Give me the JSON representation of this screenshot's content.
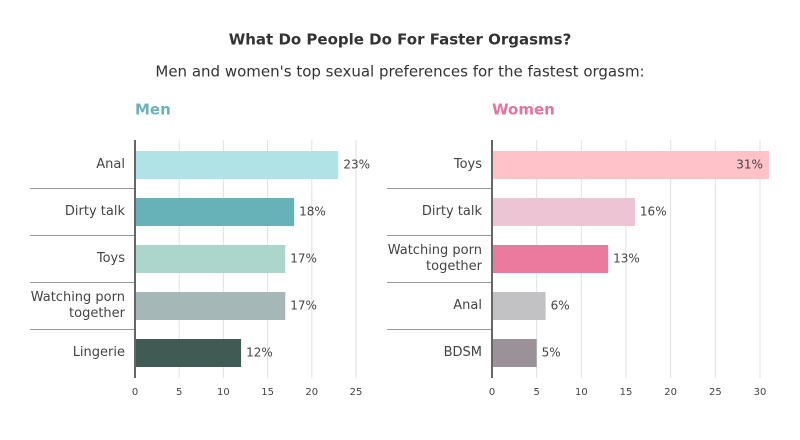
{
  "title": "What Do People Do For Faster Orgasms?",
  "subtitle": "Men and women's top sexual preferences for the fastest orgasm:",
  "chart_data": [
    {
      "type": "bar",
      "orientation": "horizontal",
      "title": "Men",
      "title_color": "#6bb3b9",
      "categories": [
        "Anal",
        "Dirty talk",
        "Toys",
        "Watching porn together",
        "Lingerie"
      ],
      "values": [
        23,
        18,
        17,
        17,
        12
      ],
      "value_labels": [
        "23%",
        "18%",
        "17%",
        "17%",
        "12%"
      ],
      "colors": [
        "#b0e3e6",
        "#67b1b8",
        "#acd6cc",
        "#a5b7b7",
        "#3f5b54"
      ],
      "xlim": [
        0,
        25
      ],
      "xticks": [
        0,
        5,
        10,
        15,
        20,
        25
      ],
      "grid": true
    },
    {
      "type": "bar",
      "orientation": "horizontal",
      "title": "Women",
      "title_color": "#e7739b",
      "categories": [
        "Toys",
        "Dirty talk",
        "Watching porn together",
        "Anal",
        "BDSM"
      ],
      "values": [
        31,
        16,
        13,
        6,
        5
      ],
      "value_labels": [
        "31%",
        "16%",
        "13%",
        "6%",
        "5%"
      ],
      "colors": [
        "#fec2c8",
        "#ecc4d3",
        "#ec7a9e",
        "#c2c2c4",
        "#9b9299"
      ],
      "xlim": [
        0,
        30
      ],
      "xticks": [
        0,
        5,
        10,
        15,
        20,
        25,
        30
      ],
      "grid": true
    }
  ]
}
